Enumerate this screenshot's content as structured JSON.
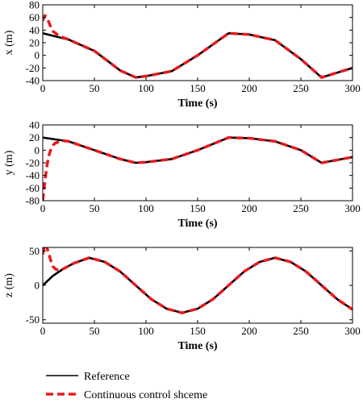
{
  "colors": {
    "reference": "#000000",
    "control": "#e8191f",
    "frame": "#000000"
  },
  "legend": {
    "placement": "bottom-left",
    "entries": [
      {
        "label": "Reference",
        "style": "solid",
        "color": "#000000"
      },
      {
        "label": "Continuous control shceme",
        "style": "dashed",
        "color": "#e8191f"
      }
    ]
  },
  "chart_data": [
    {
      "type": "line",
      "xlabel": "Time (s)",
      "ylabel": "x (m)",
      "xlim": [
        0,
        300
      ],
      "ylim": [
        -40,
        80
      ],
      "xticks": [
        0,
        50,
        100,
        150,
        200,
        250,
        300
      ],
      "yticks": [
        -40,
        -20,
        0,
        20,
        40,
        60,
        80
      ],
      "series": [
        {
          "name": "Reference",
          "x": [
            0,
            25,
            50,
            75,
            90,
            100,
            125,
            150,
            180,
            200,
            225,
            250,
            270,
            300
          ],
          "y": [
            35,
            25,
            7,
            -24,
            -35,
            -33,
            -25,
            0,
            35,
            33,
            24,
            -6,
            -35,
            -20
          ]
        },
        {
          "name": "Continuous control shceme",
          "x": [
            0,
            2,
            4,
            6,
            8,
            10,
            14,
            20,
            25,
            50,
            75,
            90,
            100,
            125,
            150,
            180,
            200,
            225,
            250,
            270,
            300
          ],
          "y": [
            55,
            63,
            60,
            52,
            44,
            38,
            33,
            28,
            25,
            7,
            -24,
            -35,
            -33,
            -25,
            0,
            35,
            33,
            24,
            -6,
            -35,
            -20
          ]
        }
      ]
    },
    {
      "type": "line",
      "xlabel": "Time (s)",
      "ylabel": "y (m)",
      "xlim": [
        0,
        300
      ],
      "ylim": [
        -80,
        40
      ],
      "xticks": [
        0,
        50,
        100,
        150,
        200,
        250,
        300
      ],
      "yticks": [
        -80,
        -60,
        -40,
        -20,
        0,
        20,
        40
      ],
      "series": [
        {
          "name": "Reference",
          "x": [
            0,
            25,
            50,
            75,
            90,
            100,
            125,
            150,
            180,
            200,
            225,
            250,
            270,
            300
          ],
          "y": [
            20,
            14,
            0,
            -14,
            -20,
            -19,
            -14,
            0,
            20,
            19,
            14,
            0,
            -20,
            -11
          ]
        },
        {
          "name": "Continuous control shceme",
          "x": [
            0,
            2,
            4,
            6,
            8,
            10,
            12,
            15,
            20,
            25,
            50,
            75,
            90,
            100,
            125,
            150,
            180,
            200,
            225,
            250,
            270,
            300
          ],
          "y": [
            -80,
            -50,
            -25,
            -8,
            2,
            8,
            11,
            13,
            15,
            14,
            0,
            -14,
            -20,
            -19,
            -14,
            0,
            20,
            19,
            14,
            0,
            -20,
            -11
          ]
        }
      ]
    },
    {
      "type": "line",
      "xlabel": "Time (s)",
      "ylabel": "z (m)",
      "xlim": [
        0,
        300
      ],
      "ylim": [
        -55,
        55
      ],
      "xticks": [
        0,
        50,
        100,
        150,
        200,
        250,
        300
      ],
      "yticks": [
        -50,
        0,
        50
      ],
      "series": [
        {
          "name": "Reference",
          "x": [
            0,
            10,
            20,
            30,
            45,
            60,
            75,
            90,
            105,
            120,
            135,
            150,
            165,
            180,
            195,
            210,
            225,
            240,
            255,
            270,
            285,
            300
          ],
          "y": [
            0,
            14,
            24,
            32,
            40,
            34,
            20,
            0,
            -20,
            -34,
            -40,
            -34,
            -20,
            0,
            20,
            34,
            40,
            34,
            20,
            0,
            -20,
            -35
          ]
        },
        {
          "name": "Continuous control shceme",
          "x": [
            0,
            2,
            4,
            6,
            8,
            10,
            13,
            16,
            20,
            25,
            30,
            45,
            60,
            75,
            90,
            105,
            120,
            135,
            150,
            165,
            180,
            195,
            210,
            225,
            240,
            255,
            270,
            285,
            300
          ],
          "y": [
            45,
            60,
            55,
            45,
            35,
            27,
            23,
            22,
            24,
            28,
            32,
            40,
            34,
            20,
            0,
            -20,
            -34,
            -40,
            -34,
            -20,
            0,
            20,
            34,
            40,
            34,
            20,
            0,
            -20,
            -35
          ]
        }
      ]
    }
  ]
}
